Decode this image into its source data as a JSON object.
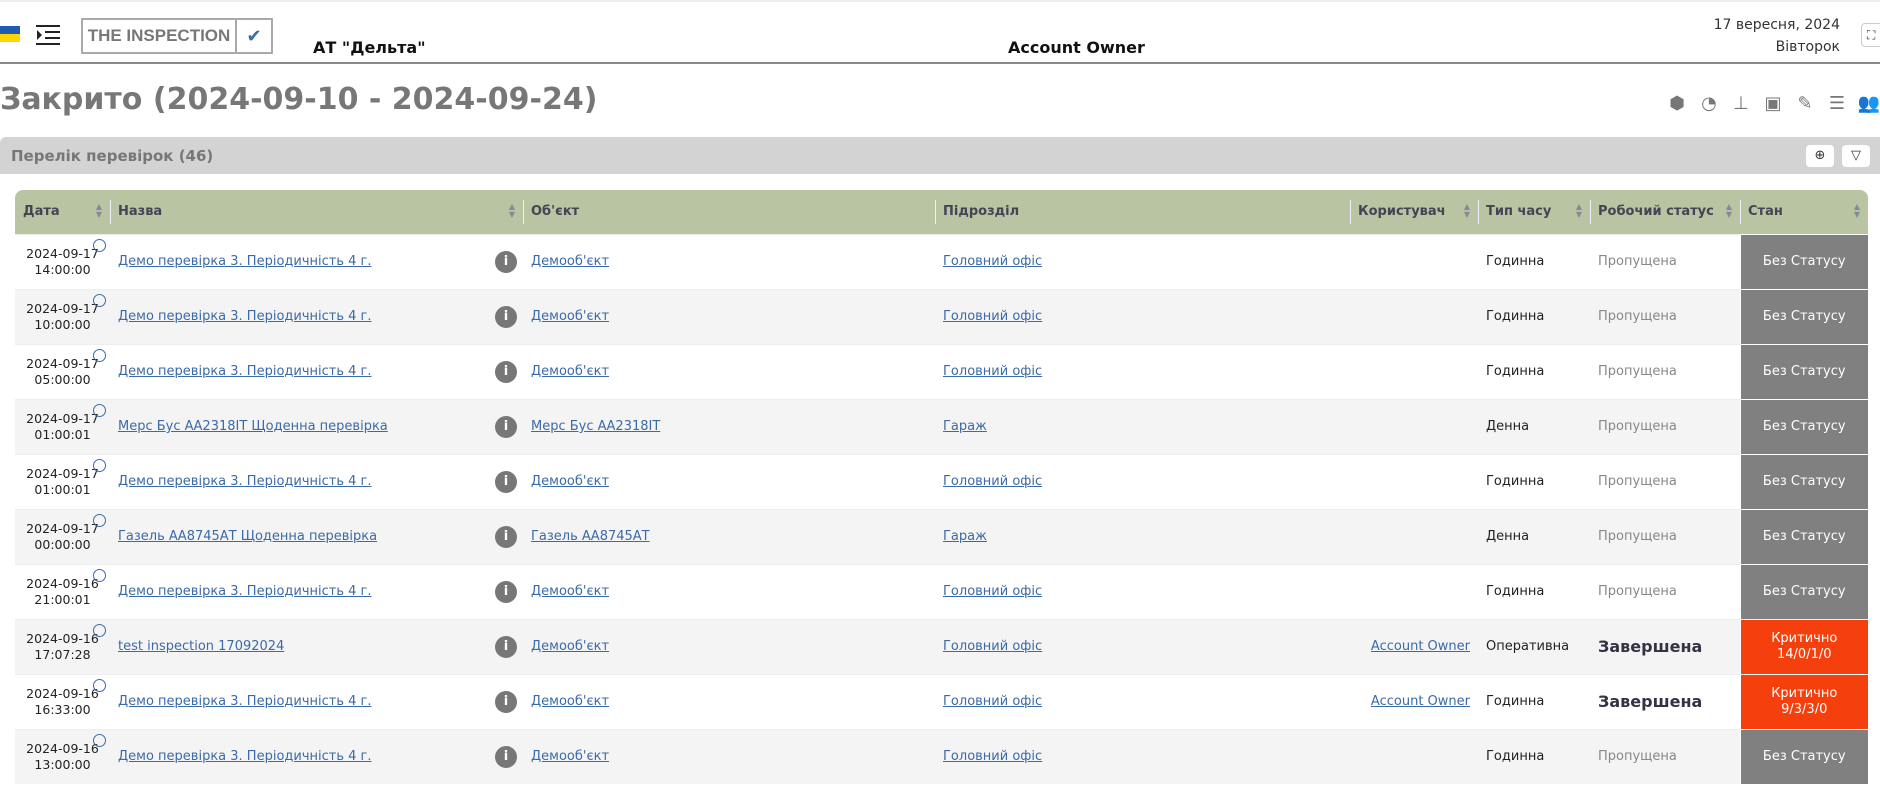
{
  "header": {
    "logo": "THE INSPECTION",
    "company": "АТ \"Дельта\"",
    "user": "Account Owner",
    "date": "17 вересня, 2024",
    "weekday": "Вівторок"
  },
  "page": {
    "title": "Закрито (2024-09-10 - 2024-09-24)"
  },
  "panel": {
    "title": "Перелік перевірок (46)"
  },
  "colors": {
    "header_bg": "#b8c4a2",
    "state_gray": "#808080",
    "state_critical": "#f5400d",
    "link": "#3b6aa8"
  },
  "table": {
    "columns": [
      "Дата",
      "Назва",
      "Об'єкт",
      "Підрозділ",
      "Користувач",
      "Тип часу",
      "Робочий статус",
      "Стан"
    ],
    "rows": [
      {
        "date": "2024-09-17",
        "time": "14:00:00",
        "name": "Демо перевірка 3. Періодичність 4 г.",
        "object": "Демооб'єкт",
        "unit": "Головний офіс",
        "user": "",
        "time_type": "Годинна",
        "work_status": "Пропущена",
        "state": "Без Статусу",
        "state_detail": "",
        "critical": false
      },
      {
        "date": "2024-09-17",
        "time": "10:00:00",
        "name": "Демо перевірка 3. Періодичність 4 г.",
        "object": "Демооб'єкт",
        "unit": "Головний офіс",
        "user": "",
        "time_type": "Годинна",
        "work_status": "Пропущена",
        "state": "Без Статусу",
        "state_detail": "",
        "critical": false
      },
      {
        "date": "2024-09-17",
        "time": "05:00:00",
        "name": "Демо перевірка 3. Періодичність 4 г.",
        "object": "Демооб'єкт",
        "unit": "Головний офіс",
        "user": "",
        "time_type": "Годинна",
        "work_status": "Пропущена",
        "state": "Без Статусу",
        "state_detail": "",
        "critical": false
      },
      {
        "date": "2024-09-17",
        "time": "01:00:01",
        "name": "Мерс Бус АА2318ІТ Щоденна перевірка",
        "object": "Мерс Бус АА2318ІТ",
        "unit": "Гараж",
        "user": "",
        "time_type": "Денна",
        "work_status": "Пропущена",
        "state": "Без Статусу",
        "state_detail": "",
        "critical": false
      },
      {
        "date": "2024-09-17",
        "time": "01:00:01",
        "name": "Демо перевірка 3. Періодичність 4 г.",
        "object": "Демооб'єкт",
        "unit": "Головний офіс",
        "user": "",
        "time_type": "Годинна",
        "work_status": "Пропущена",
        "state": "Без Статусу",
        "state_detail": "",
        "critical": false
      },
      {
        "date": "2024-09-17",
        "time": "00:00:00",
        "name": "Газель АА8745АТ Щоденна перевірка",
        "object": "Газель АА8745АТ",
        "unit": "Гараж",
        "user": "",
        "time_type": "Денна",
        "work_status": "Пропущена",
        "state": "Без Статусу",
        "state_detail": "",
        "critical": false
      },
      {
        "date": "2024-09-16",
        "time": "21:00:01",
        "name": "Демо перевірка 3. Періодичність 4 г.",
        "object": "Демооб'єкт",
        "unit": "Головний офіс",
        "user": "",
        "time_type": "Годинна",
        "work_status": "Пропущена",
        "state": "Без Статусу",
        "state_detail": "",
        "critical": false
      },
      {
        "date": "2024-09-16",
        "time": "17:07:28",
        "name": "test inspection 17092024",
        "object": "Демооб'єкт",
        "unit": "Головний офіс",
        "user": "Account Owner",
        "time_type": "Оперативна",
        "work_status": "Завершена",
        "state": "Критично",
        "state_detail": "14/0/1/0",
        "critical": true
      },
      {
        "date": "2024-09-16",
        "time": "16:33:00",
        "name": "Демо перевірка 3. Періодичність 4 г.",
        "object": "Демооб'єкт",
        "unit": "Головний офіс",
        "user": "Account Owner",
        "time_type": "Годинна",
        "work_status": "Завершена",
        "state": "Критично",
        "state_detail": "9/3/3/0",
        "critical": true
      },
      {
        "date": "2024-09-16",
        "time": "13:00:00",
        "name": "Демо перевірка 3. Періодичність 4 г.",
        "object": "Демооб'єкт",
        "unit": "Головний офіс",
        "user": "",
        "time_type": "Годинна",
        "work_status": "Пропущена",
        "state": "Без Статусу",
        "state_detail": "",
        "critical": false
      }
    ]
  }
}
